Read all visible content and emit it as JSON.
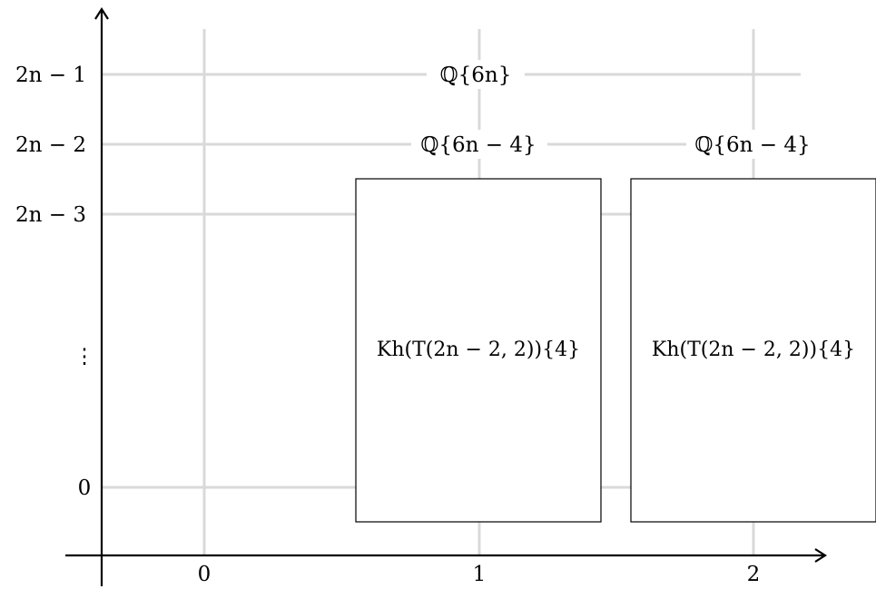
{
  "diagram": {
    "x_ticks": [
      "0",
      "1",
      "2"
    ],
    "y_ticks": [
      "2n − 1",
      "2n − 2",
      "2n − 3",
      "⋮",
      "0"
    ],
    "entries": {
      "q_6n": "ℚ{6n}",
      "q_6n_minus_4_col1": "ℚ{6n − 4}",
      "q_6n_minus_4_col2": "ℚ{6n − 4}"
    },
    "boxes": {
      "box_col1": "Kh(T(2n − 2, 2)){4}",
      "box_col2": "Kh(T(2n − 2, 2)){4}"
    },
    "colors": {
      "grid": "#d9d9d9",
      "axis": "#000000",
      "box_border": "#000000",
      "box_fill": "#ffffff"
    }
  }
}
